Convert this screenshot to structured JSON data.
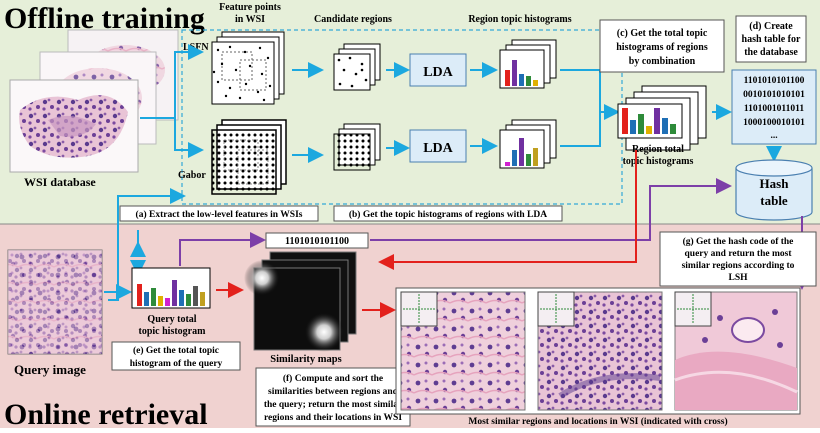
{
  "sections": {
    "offline_title": "Offline training",
    "online_title": "Online retrieval"
  },
  "labels": {
    "feature_points": "Feature points",
    "in_wsi": "in WSI",
    "candidate_regions": "Candidate regions",
    "region_topic_histograms": "Region topic histograms",
    "lsfn": "LSFN",
    "gabor": "Gabor",
    "lda_top": "LDA",
    "lda_bottom": "LDA",
    "wsi_database": "WSI database",
    "query_image": "Query image",
    "query_hist_1": "Query total",
    "query_hist_2": "topic histogram",
    "similarity_maps": "Similarity maps",
    "region_total_1": "Region total",
    "region_total_2": "topic histograms",
    "hash_table_1": "Hash",
    "hash_table_2": "table",
    "hash_code_query": "1101010101100",
    "most_similar": "Most similar regions and locations in WSI (indicated with cross)",
    "binary_codes": [
      "1101010101100",
      "0010101010101",
      "1101001011011",
      "1000100010101",
      "..."
    ]
  },
  "steps": {
    "a": "(a) Extract the low-level features in WSIs",
    "b": "(b) Get the topic histograms of regions with LDA",
    "c": [
      "(c) Get the total topic",
      "histograms of regions",
      "by combination"
    ],
    "d": [
      "(d) Create",
      "hash table for",
      "the database"
    ],
    "e": [
      "(e) Get the total topic",
      "histogram of the query"
    ],
    "f": [
      "(f) Compute and sort the",
      "similarities between regions and",
      "the query; return the most similar",
      "regions and their locations in WSI"
    ],
    "g": [
      "(g) Get the hash code of the",
      "query and return the most",
      "similar regions according to",
      "LSH"
    ]
  },
  "colors": {
    "offline_bg": "#e6efd9",
    "online_bg": "#f0d2d0",
    "blue_arrow": "#1ca8df",
    "red_arrow": "#e3211c",
    "purple_arrow": "#7d3fa8",
    "dashed_box": "#33a9d8",
    "code_box": "#dcecf8"
  }
}
